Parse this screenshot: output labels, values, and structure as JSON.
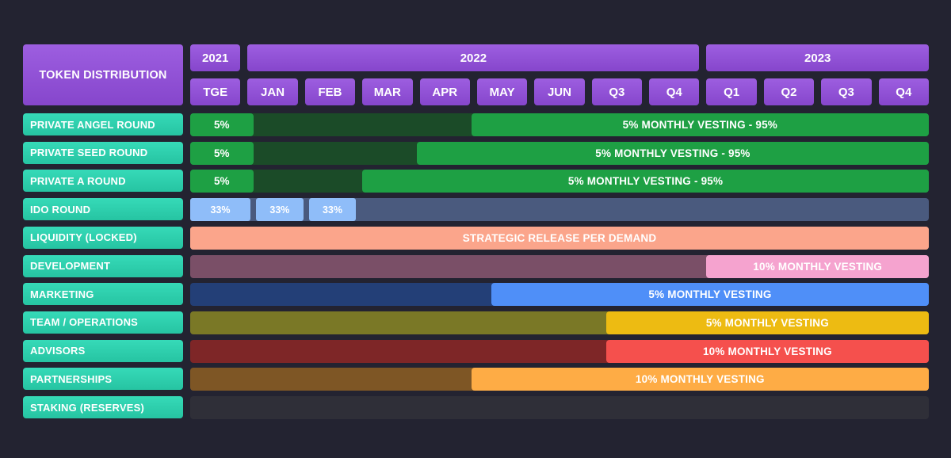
{
  "chart_data": {
    "type": "gantt",
    "title": "TOKEN DISTRIBUTION",
    "years": [
      {
        "label": "2021",
        "start": 0,
        "end": 1
      },
      {
        "label": "2022",
        "start": 1,
        "end": 9
      },
      {
        "label": "2023",
        "start": 9,
        "end": 13
      }
    ],
    "periods": [
      "TGE",
      "JAN",
      "FEB",
      "MAR",
      "APR",
      "MAY",
      "JUN",
      "Q3",
      "Q4",
      "Q1",
      "Q2",
      "Q3",
      "Q4"
    ],
    "rows": [
      {
        "name": "PRIVATE ANGEL ROUND",
        "track": "#1c4a2a",
        "segments": [
          {
            "start": 0,
            "end": 1.1,
            "label": "5%",
            "color": "#1ea044"
          },
          {
            "start": 1.1,
            "end": 4.9,
            "label": "",
            "color": "#1b4b28"
          },
          {
            "start": 4.9,
            "end": 13,
            "label": "5% MONTHLY VESTING - 95%",
            "color": "#1ea044"
          }
        ]
      },
      {
        "name": "PRIVATE SEED ROUND",
        "track": "#1c4a2a",
        "segments": [
          {
            "start": 0,
            "end": 1.1,
            "label": "5%",
            "color": "#1ea044"
          },
          {
            "start": 1.1,
            "end": 3.95,
            "label": "",
            "color": "#1b4b28"
          },
          {
            "start": 3.95,
            "end": 13,
            "label": "5% MONTHLY VESTING - 95%",
            "color": "#1ea044"
          }
        ]
      },
      {
        "name": "PRIVATE A ROUND",
        "track": "#1c4a2a",
        "segments": [
          {
            "start": 0,
            "end": 1.1,
            "label": "5%",
            "color": "#1ea044"
          },
          {
            "start": 1.1,
            "end": 3.0,
            "label": "",
            "color": "#1b4b28"
          },
          {
            "start": 3.0,
            "end": 13,
            "label": "5% MONTHLY VESTING - 95%",
            "color": "#1ea044"
          }
        ]
      },
      {
        "name": "IDO ROUND",
        "track": "#4a5a7e",
        "segments": [
          {
            "start": 0,
            "end": 1.05,
            "label": "33%",
            "color": "#8fbdf9",
            "chip": true
          },
          {
            "start": 1.15,
            "end": 1.97,
            "label": "33%",
            "color": "#8fbdf9",
            "chip": true
          },
          {
            "start": 2.07,
            "end": 2.89,
            "label": "33%",
            "color": "#8fbdf9",
            "chip": true
          }
        ]
      },
      {
        "name": "LIQUIDITY (LOCKED)",
        "track": "#fba58b",
        "segments": [
          {
            "start": 0,
            "end": 13,
            "label": "STRATEGIC RELEASE PER DEMAND",
            "color": "#fba58b"
          }
        ]
      },
      {
        "name": "DEVELOPMENT",
        "track": "#7a4f67",
        "segments": [
          {
            "start": 9,
            "end": 13,
            "label": "10% MONTHLY VESTING",
            "color": "#f5a3cf"
          }
        ]
      },
      {
        "name": "MARKETING",
        "track": "#233f77",
        "segments": [
          {
            "start": 5.25,
            "end": 13,
            "label": "5% MONTHLY VESTING",
            "color": "#4f8ff8"
          }
        ]
      },
      {
        "name": "TEAM / OPERATIONS",
        "track": "#7a7826",
        "segments": [
          {
            "start": 7.25,
            "end": 13,
            "label": "5% MONTHLY VESTING",
            "color": "#edbb12"
          }
        ]
      },
      {
        "name": "ADVISORS",
        "track": "#7e2627",
        "segments": [
          {
            "start": 7.25,
            "end": 13,
            "label": "10% MONTHLY VESTING",
            "color": "#f5504d"
          }
        ]
      },
      {
        "name": "PARTNERSHIPS",
        "track": "#7e5625",
        "segments": [
          {
            "start": 4.9,
            "end": 13,
            "label": "10% MONTHLY VESTING",
            "color": "#feac45"
          }
        ]
      },
      {
        "name": "STAKING (RESERVES)",
        "track": "#2f2f38",
        "segments": []
      }
    ]
  }
}
